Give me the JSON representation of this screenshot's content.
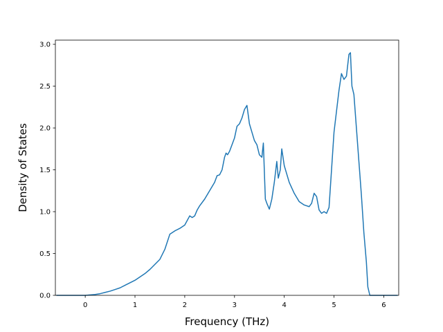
{
  "chart_data": {
    "type": "line",
    "title": "",
    "xlabel": "Frequency (THz)",
    "ylabel": "Density of States",
    "xlim": [
      -0.6,
      6.3
    ],
    "ylim": [
      0,
      3.05
    ],
    "xticks": [
      0,
      1,
      2,
      3,
      4,
      5,
      6
    ],
    "yticks": [
      0.0,
      0.5,
      1.0,
      1.5,
      2.0,
      2.5,
      3.0
    ],
    "xtick_labels": [
      "0",
      "1",
      "2",
      "3",
      "4",
      "5",
      "6"
    ],
    "ytick_labels": [
      "0.0",
      "0.5",
      "1.0",
      "1.5",
      "2.0",
      "2.5",
      "3.0"
    ],
    "grid": false,
    "line_color": "#1f77b4",
    "series": [
      {
        "x": [
          -0.58,
          0.0,
          0.1,
          0.2,
          0.3,
          0.4,
          0.5,
          0.6,
          0.7,
          0.8,
          0.9,
          1.0,
          1.1,
          1.2,
          1.3,
          1.4,
          1.5,
          1.6,
          1.7,
          1.75,
          1.8,
          1.9,
          2.0,
          2.1,
          2.15,
          2.2,
          2.25,
          2.3,
          2.4,
          2.5,
          2.6,
          2.65,
          2.7,
          2.75,
          2.8,
          2.83,
          2.86,
          2.9,
          2.95,
          3.0,
          3.05,
          3.1,
          3.15,
          3.2,
          3.25,
          3.3,
          3.35,
          3.4,
          3.45,
          3.5,
          3.55,
          3.58,
          3.6,
          3.62,
          3.65,
          3.7,
          3.75,
          3.8,
          3.85,
          3.88,
          3.92,
          3.95,
          4.0,
          4.05,
          4.1,
          4.2,
          4.3,
          4.4,
          4.5,
          4.55,
          4.6,
          4.65,
          4.7,
          4.75,
          4.8,
          4.85,
          4.9,
          4.95,
          5.0,
          5.05,
          5.1,
          5.15,
          5.2,
          5.25,
          5.3,
          5.33,
          5.36,
          5.4,
          5.45,
          5.5,
          5.55,
          5.6,
          5.65,
          5.68,
          5.72,
          5.8,
          6.0,
          6.28
        ],
        "y": [
          0.0,
          0.0,
          0.005,
          0.01,
          0.02,
          0.035,
          0.05,
          0.07,
          0.09,
          0.12,
          0.15,
          0.18,
          0.22,
          0.26,
          0.31,
          0.37,
          0.43,
          0.55,
          0.73,
          0.75,
          0.77,
          0.8,
          0.84,
          0.95,
          0.93,
          0.95,
          1.02,
          1.07,
          1.15,
          1.25,
          1.35,
          1.43,
          1.44,
          1.5,
          1.65,
          1.7,
          1.68,
          1.72,
          1.8,
          1.88,
          2.02,
          2.05,
          2.12,
          2.22,
          2.27,
          2.05,
          1.95,
          1.85,
          1.8,
          1.68,
          1.65,
          1.82,
          1.48,
          1.15,
          1.1,
          1.03,
          1.15,
          1.35,
          1.6,
          1.4,
          1.5,
          1.75,
          1.55,
          1.45,
          1.35,
          1.22,
          1.12,
          1.08,
          1.06,
          1.1,
          1.22,
          1.18,
          1.02,
          0.98,
          1.0,
          0.98,
          1.05,
          1.5,
          1.95,
          2.2,
          2.45,
          2.65,
          2.58,
          2.62,
          2.88,
          2.9,
          2.5,
          2.4,
          2.0,
          1.6,
          1.2,
          0.75,
          0.4,
          0.1,
          0.0,
          0.0,
          0.0,
          0.0
        ]
      }
    ]
  }
}
